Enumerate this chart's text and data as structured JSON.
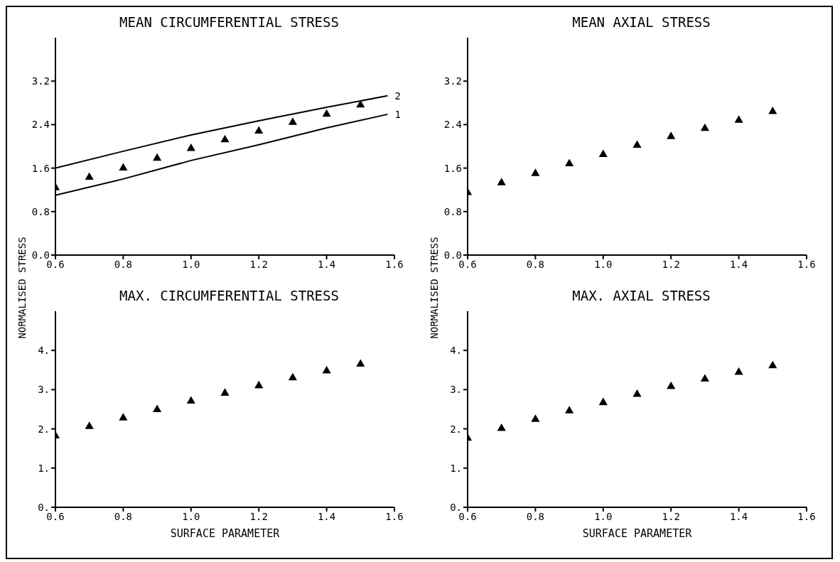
{
  "chart_data": [
    {
      "type": "scatter",
      "title": "MEAN CIRCUMFERENTIAL STRESS",
      "ylabel": "NORMALISED STRESS",
      "x": [
        0.6,
        0.7,
        0.8,
        0.9,
        1.0,
        1.1,
        1.2,
        1.3,
        1.4,
        1.5
      ],
      "xlim": [
        0.6,
        1.6
      ],
      "xticks": [
        {
          "value": 0.6,
          "label": "0.6"
        },
        {
          "value": 0.8,
          "label": "0.8"
        },
        {
          "value": 1.0,
          "label": "1.0"
        },
        {
          "value": 1.2,
          "label": "1.2"
        },
        {
          "value": 1.4,
          "label": "1.4"
        },
        {
          "value": 1.6,
          "label": "1.6"
        }
      ],
      "ylim": [
        0,
        4
      ],
      "yticks": [
        {
          "value": 0,
          "label": "0.0"
        },
        {
          "value": 0.8,
          "label": "0.8"
        },
        {
          "value": 1.6,
          "label": "1.6"
        },
        {
          "value": 2.4,
          "label": "2.4"
        },
        {
          "value": 3.2,
          "label": "3.2"
        }
      ],
      "grid": false,
      "legend": false,
      "series": [
        {
          "color": "#000000",
          "marker": "triangle",
          "values": [
            1.24,
            1.43,
            1.6,
            1.78,
            1.96,
            2.12,
            2.28,
            2.44,
            2.59,
            2.76
          ]
        },
        {
          "name": "2",
          "type": "line",
          "marker": "none",
          "color": "#000000",
          "x": [
            0.6,
            0.8,
            1.0,
            1.2,
            1.4,
            1.58
          ],
          "values": [
            1.6,
            1.91,
            2.21,
            2.47,
            2.72,
            2.93
          ]
        },
        {
          "name": "1",
          "type": "line",
          "marker": "none",
          "color": "#000000",
          "x": [
            0.6,
            0.8,
            1.0,
            1.2,
            1.4,
            1.58
          ],
          "values": [
            1.1,
            1.4,
            1.74,
            2.03,
            2.34,
            2.59
          ]
        }
      ]
    },
    {
      "type": "scatter",
      "title": "MEAN AXIAL STRESS",
      "ylabel": "NORMALISED STRESS",
      "x": [
        0.6,
        0.7,
        0.8,
        0.9,
        1.0,
        1.1,
        1.2,
        1.3,
        1.4,
        1.5
      ],
      "xlim": [
        0.6,
        1.6
      ],
      "xticks": [
        {
          "value": 0.6,
          "label": "0.6"
        },
        {
          "value": 0.8,
          "label": "0.8"
        },
        {
          "value": 1.0,
          "label": "1.0"
        },
        {
          "value": 1.2,
          "label": "1.2"
        },
        {
          "value": 1.4,
          "label": "1.4"
        },
        {
          "value": 1.6,
          "label": "1.6"
        }
      ],
      "ylim": [
        0,
        4
      ],
      "yticks": [
        {
          "value": 0,
          "label": "0.0"
        },
        {
          "value": 0.8,
          "label": "0.8"
        },
        {
          "value": 1.6,
          "label": "1.6"
        },
        {
          "value": 2.4,
          "label": "2.4"
        },
        {
          "value": 3.2,
          "label": "3.2"
        }
      ],
      "grid": false,
      "legend": false,
      "marker": "triangle",
      "series": [
        {
          "color": "#000000",
          "values": [
            1.15,
            1.33,
            1.5,
            1.68,
            1.85,
            2.02,
            2.18,
            2.33,
            2.48,
            2.64
          ]
        }
      ]
    },
    {
      "type": "scatter",
      "title": "MAX. CIRCUMFERENTIAL STRESS",
      "xlabel": "SURFACE PARAMETER",
      "x": [
        0.6,
        0.7,
        0.8,
        0.9,
        1.0,
        1.1,
        1.2,
        1.3,
        1.4,
        1.5
      ],
      "xlim": [
        0.6,
        1.6
      ],
      "xticks": [
        {
          "value": 0.6,
          "label": "0.6"
        },
        {
          "value": 0.8,
          "label": "0.8"
        },
        {
          "value": 1.0,
          "label": "1.0"
        },
        {
          "value": 1.2,
          "label": "1.2"
        },
        {
          "value": 1.4,
          "label": "1.4"
        },
        {
          "value": 1.6,
          "label": "1.6"
        }
      ],
      "ylim": [
        0,
        5
      ],
      "yticks": [
        {
          "value": 0,
          "label": "0."
        },
        {
          "value": 1,
          "label": "1."
        },
        {
          "value": 2,
          "label": "2."
        },
        {
          "value": 3,
          "label": "3."
        },
        {
          "value": 4,
          "label": "4."
        }
      ],
      "grid": false,
      "legend": false,
      "marker": "triangle",
      "series": [
        {
          "color": "#000000",
          "values": [
            1.82,
            2.06,
            2.28,
            2.49,
            2.71,
            2.91,
            3.1,
            3.3,
            3.48,
            3.65
          ]
        }
      ]
    },
    {
      "type": "scatter",
      "title": "MAX. AXIAL STRESS",
      "xlabel": "SURFACE PARAMETER",
      "x": [
        0.6,
        0.7,
        0.8,
        0.9,
        1.0,
        1.1,
        1.2,
        1.3,
        1.4,
        1.5
      ],
      "xlim": [
        0.6,
        1.6
      ],
      "xticks": [
        {
          "value": 0.6,
          "label": "0.6"
        },
        {
          "value": 0.8,
          "label": "0.8"
        },
        {
          "value": 1.0,
          "label": "1.0"
        },
        {
          "value": 1.2,
          "label": "1.2"
        },
        {
          "value": 1.4,
          "label": "1.4"
        },
        {
          "value": 1.6,
          "label": "1.6"
        }
      ],
      "ylim": [
        0,
        5
      ],
      "yticks": [
        {
          "value": 0,
          "label": "0."
        },
        {
          "value": 1,
          "label": "1."
        },
        {
          "value": 2,
          "label": "2."
        },
        {
          "value": 3,
          "label": "3."
        },
        {
          "value": 4,
          "label": "4."
        }
      ],
      "grid": false,
      "legend": false,
      "marker": "triangle",
      "series": [
        {
          "color": "#000000",
          "values": [
            1.76,
            2.01,
            2.24,
            2.46,
            2.67,
            2.88,
            3.08,
            3.27,
            3.44,
            3.61
          ]
        }
      ]
    }
  ]
}
